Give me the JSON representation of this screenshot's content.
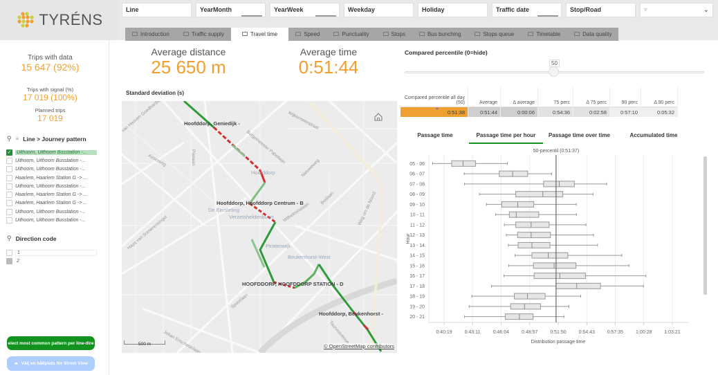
{
  "app": {
    "logo_text": "TYRÉNS",
    "brand_colors": {
      "orange": "#f0a030",
      "yellow": "#c8d23c",
      "green": "#12921f"
    }
  },
  "filters": [
    {
      "label": "Line"
    },
    {
      "label": "YearMonth"
    },
    {
      "label": "YearWeek"
    },
    {
      "label": "Weekday"
    },
    {
      "label": "Holiday"
    },
    {
      "label": "Traffic date"
    },
    {
      "label": "Stop/Road"
    }
  ],
  "filter_search_icon": "funnel-icon",
  "tabs": [
    {
      "label": "Introduction",
      "active": false
    },
    {
      "label": "Traffic supply",
      "active": false
    },
    {
      "label": "Travel time",
      "active": true
    },
    {
      "label": "Speed",
      "active": false
    },
    {
      "label": "Punctuality",
      "active": false
    },
    {
      "label": "Stops",
      "active": false
    },
    {
      "label": "Bus bunching",
      "active": false
    },
    {
      "label": "Stops queue",
      "active": false
    },
    {
      "label": "Timetable",
      "active": false
    },
    {
      "label": "Data quality",
      "active": false
    }
  ],
  "sidebar": {
    "trips_with_data": {
      "label": "Trips with data",
      "value": "15 647 (92%)"
    },
    "trips_with_signal": {
      "label": "Trips with signal (%)",
      "value": "17 019 (100%)"
    },
    "planned_trips": {
      "label": "Planned trips",
      "value": "17 019"
    },
    "journey_pattern": {
      "title": "Line > Journey pattern",
      "items": [
        {
          "label": "Uithoorn, Uithoorn Busstation -...",
          "selected": true
        },
        {
          "label": "Uithoorn, Uithoorn Busstation -...",
          "selected": false
        },
        {
          "label": "Uithoorn, Uithoorn Busstation -...",
          "selected": false
        },
        {
          "label": "Haarlem, Haarlem Station G -> ...",
          "selected": false
        },
        {
          "label": "Uithoorn, Uithoorn Busstation -...",
          "selected": false
        },
        {
          "label": "Haarlem, Haarlem Station G -> ...",
          "selected": false
        },
        {
          "label": "Haarlem, Haarlem Station G -> ...",
          "selected": false
        },
        {
          "label": "Uithoorn, Uithoorn Busstation -...",
          "selected": false
        },
        {
          "label": "Uithoorn, Uithoorn Busstation -...",
          "selected": false
        }
      ]
    },
    "direction_code": {
      "title": "Direction code",
      "items": [
        {
          "label": "1",
          "state": "possible"
        },
        {
          "label": "2",
          "state": "excluded"
        }
      ]
    },
    "btn_common_pattern": "elect most common pattern per line-dire",
    "btn_street_view": "Välj en hållplats för Street View"
  },
  "kpis": {
    "avg_distance": {
      "label": "Average distance",
      "value": "25 650 m"
    },
    "avg_time": {
      "label": "Average time",
      "value": "0:51:44"
    }
  },
  "map": {
    "title": "Standard deviation (s)",
    "labels": [
      "Hoofddorp, Geniedijk -",
      "Hoofddorp, Hoofddorp Centrum - B",
      "HOOFDDORP, HOOFDDORP STATION - D",
      "Hoofddorp, Beukenhorst -"
    ],
    "place_labels": [
      "Hoofddorp",
      "De Eersteling",
      "Verzetsheldenbuurt",
      "Piratenwijk",
      "Beukenhorst-West"
    ],
    "streets": [
      "Wijkermeerstraat",
      "Burgemeester Pabstlaan",
      "Nieuweweg",
      "Boslaan",
      "Weg om de Noord",
      "Paxlaan",
      "Asserweg",
      "Van Heuven Goedhartlaan",
      "Wilhelminalaan",
      "Somerensingel",
      "Haya van Somerensingel",
      "Spoorlaan",
      "Johan Enschedelaan",
      "Taurusavenue",
      "Polderweg"
    ],
    "scale": "500 m",
    "attribution": "© OpenStreetMap contributors"
  },
  "percentile": {
    "title": "Compared percentile (0=hide)",
    "slider_value": "50",
    "table": {
      "headers": [
        "Compared percentile all day (50)",
        "Average",
        "Δ average",
        "75 perc",
        "Δ 75 perc",
        "90 perc",
        "Δ 90 perc"
      ],
      "values": [
        "0:51:38",
        "0:51:44",
        "0:00:06",
        "0:54:36",
        "0:02:58",
        "0:57:10",
        "0:05:32"
      ]
    }
  },
  "chart_tabs": [
    {
      "label": "Passage time",
      "active": false
    },
    {
      "label": "Passage time per hour",
      "active": true
    },
    {
      "label": "Passage time over time",
      "active": false
    },
    {
      "label": "Accumulated time",
      "active": false
    }
  ],
  "chart_data": {
    "type": "boxplot",
    "title": "50-percentil  (0:51:37)",
    "reference_line": {
      "label": "50-percentil",
      "value": "0:51:37",
      "seconds": 3097
    },
    "xlabel": "Distribution passage time",
    "ylabel": "Hour",
    "x_ticks": [
      "0:40:19",
      "0:43:11",
      "0:46:04",
      "0:48:57",
      "0:51:50",
      "0:54:43",
      "0:57:35",
      "1:00:28",
      "1:03:21"
    ],
    "x_tick_seconds": [
      2419,
      2591,
      2764,
      2937,
      3110,
      3283,
      3455,
      3628,
      3801
    ],
    "categories": [
      "05 - 06",
      "06 - 07",
      "07 - 08",
      "08 - 09",
      "09 - 10",
      "10 - 11",
      "11 - 12",
      "12 - 13",
      "13 - 14",
      "14 - 15",
      "15 - 16",
      "16 - 17",
      "17 - 18",
      "18 - 19",
      "19 - 20",
      "20 - 21"
    ],
    "series": [
      {
        "name": "min",
        "values": [
          2350,
          2541,
          2543,
          2633,
          2675,
          2732,
          2784,
          2796,
          2808,
          2848,
          2811,
          2781,
          2706,
          2587,
          2571,
          2543
        ]
      },
      {
        "name": "q1",
        "values": [
          2465,
          2753,
          3021,
          2853,
          2768,
          2814,
          2853,
          2864,
          2867,
          2951,
          2960,
          2964,
          3097,
          2844,
          2822,
          2790
        ]
      },
      {
        "name": "median",
        "values": [
          2534,
          2834,
          3116,
          3017,
          2865,
          2856,
          2946,
          2946,
          2951,
          3050,
          3085,
          3120,
          3222,
          2924,
          2906,
          2875
        ]
      },
      {
        "name": "q3",
        "values": [
          2610,
          2925,
          3208,
          3138,
          2962,
          2992,
          3055,
          3063,
          3060,
          3168,
          3217,
          3275,
          3366,
          3031,
          3003,
          2958
        ]
      },
      {
        "name": "max",
        "values": [
          2802,
          3070,
          3403,
          3321,
          3220,
          3220,
          3278,
          3324,
          3348,
          3495,
          3538,
          3641,
          3626,
          3246,
          3175,
          3145
        ]
      }
    ],
    "xlim": [
      2370,
      3980
    ],
    "grid": true
  }
}
